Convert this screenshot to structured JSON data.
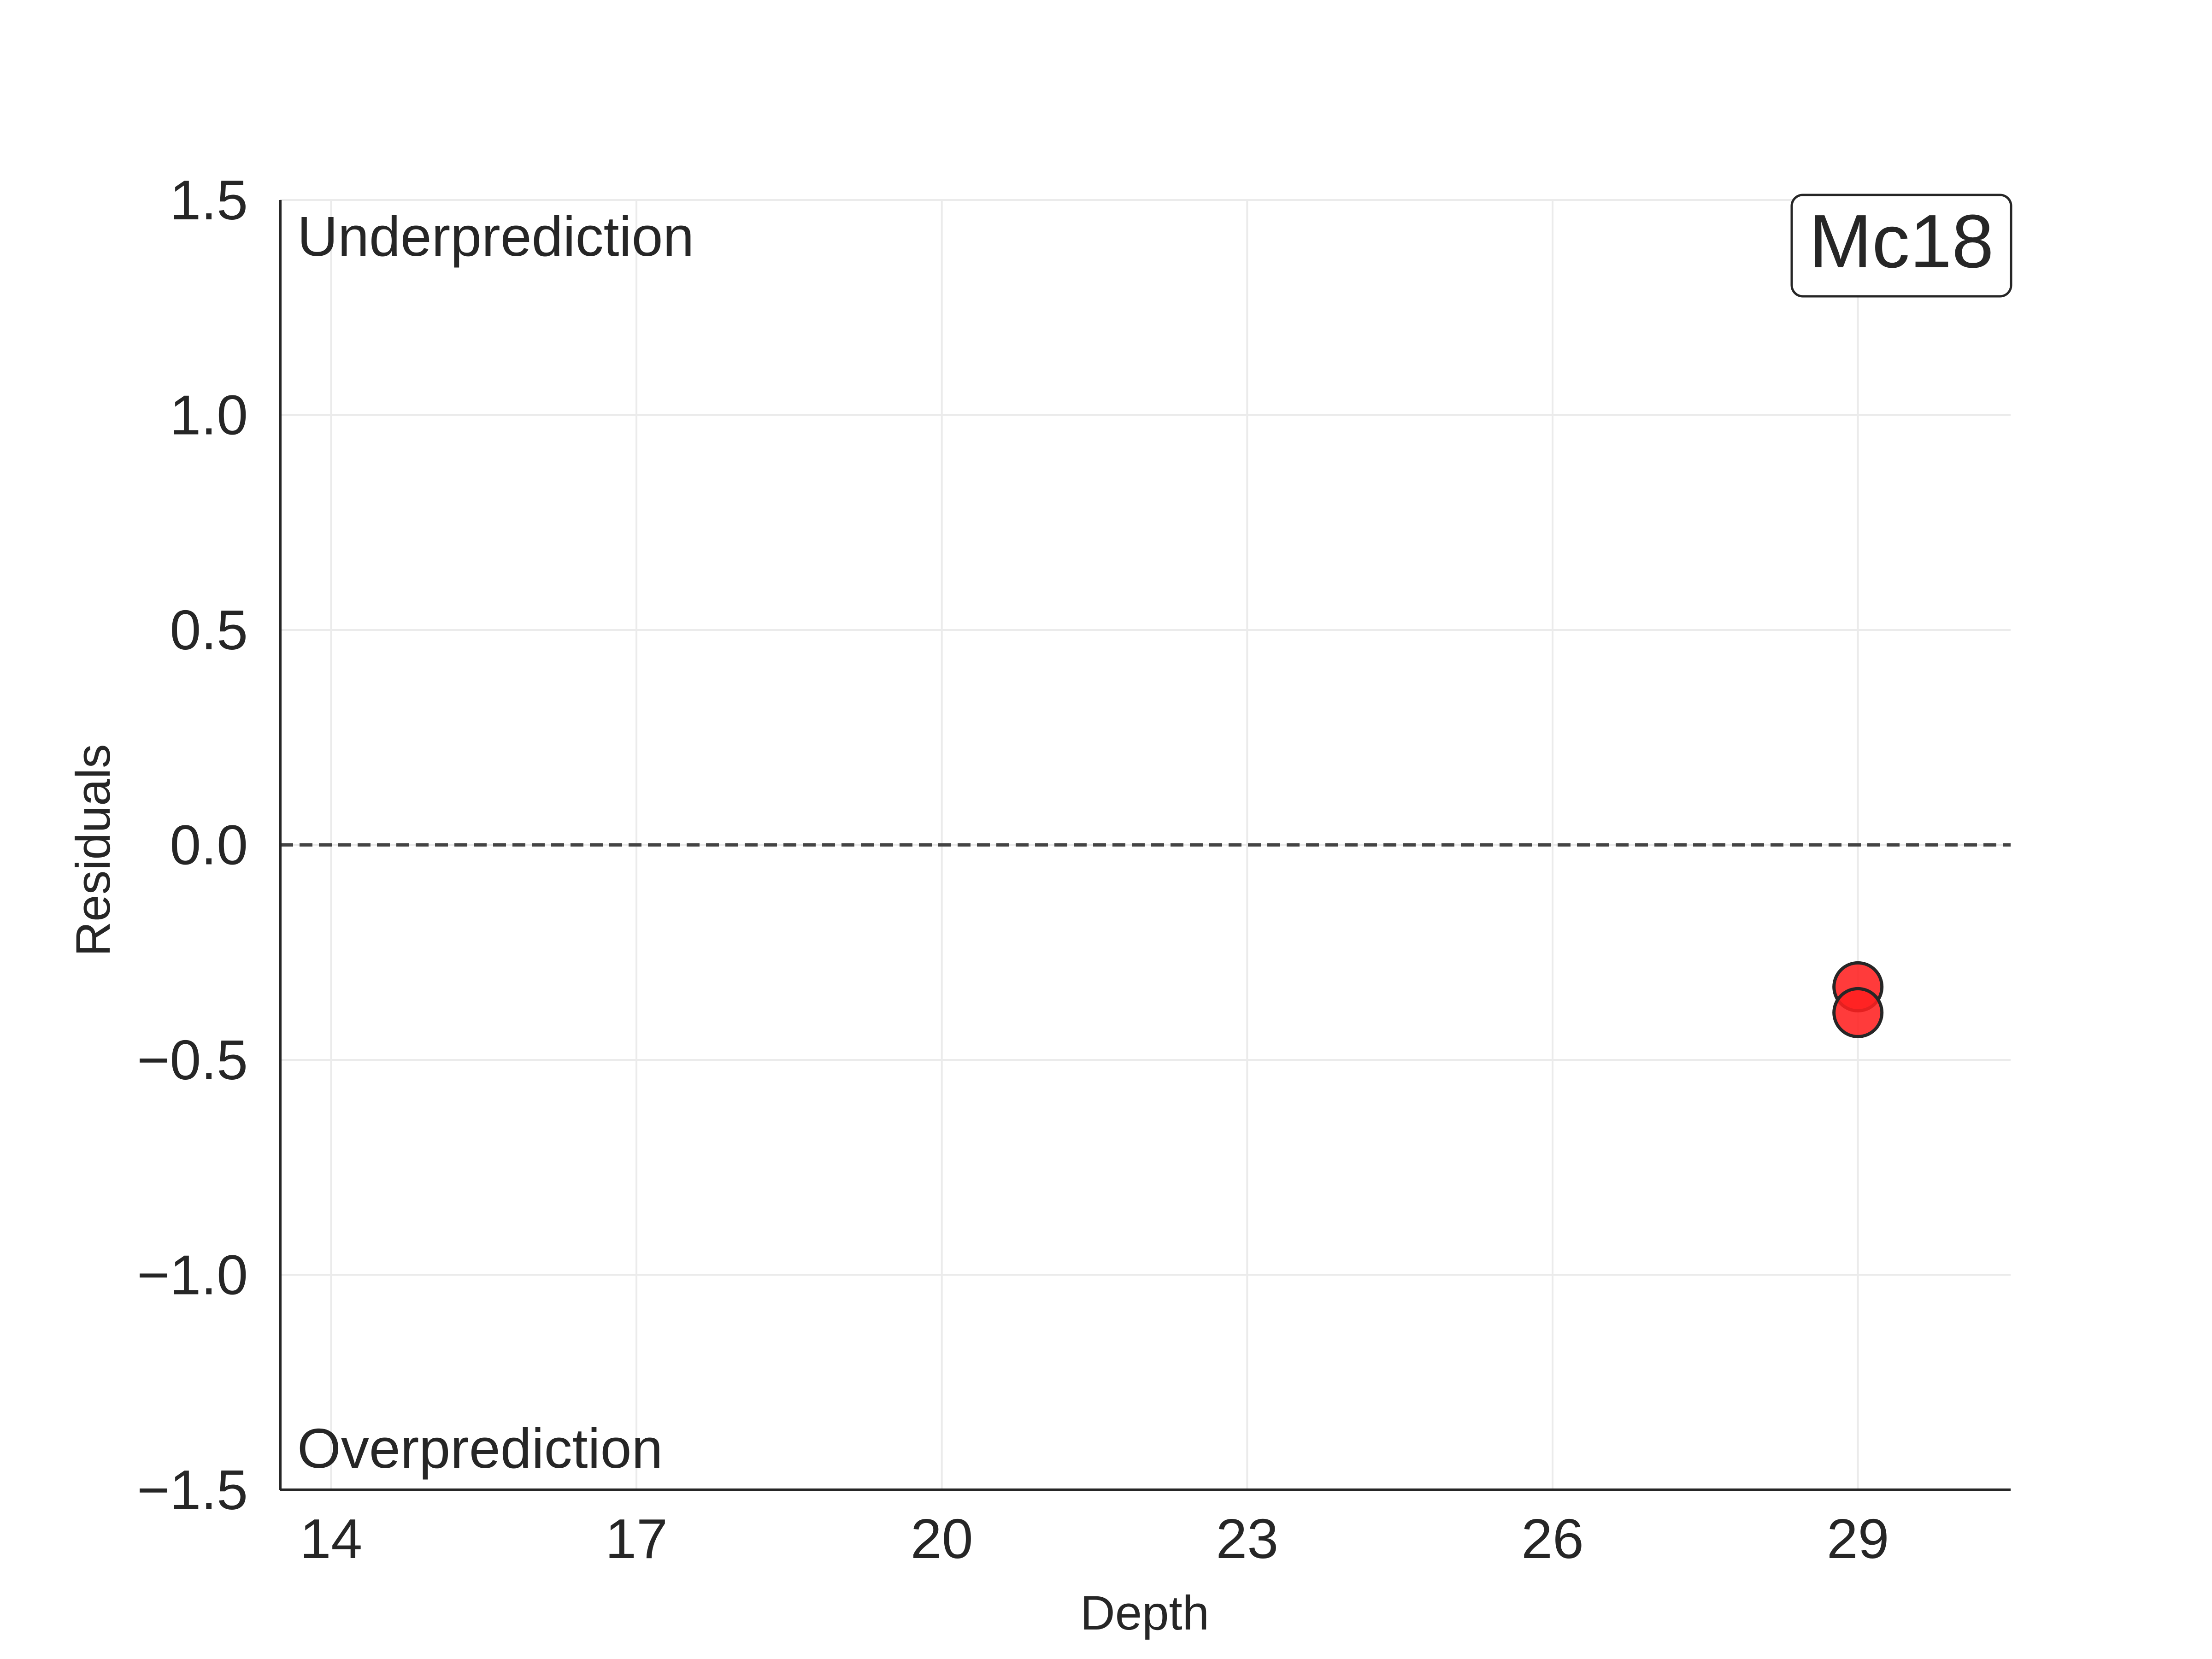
{
  "chart_data": {
    "type": "scatter",
    "title": "",
    "xlabel": "Depth",
    "ylabel": "Residuals",
    "xlim": [
      13.5,
      30.5
    ],
    "ylim": [
      -1.5,
      1.5
    ],
    "x_ticks": [
      14,
      17,
      20,
      23,
      26,
      29
    ],
    "y_ticks": [
      -1.5,
      -1.0,
      -0.5,
      0.0,
      0.5,
      1.0,
      1.5
    ],
    "x_tick_labels": [
      "14",
      "17",
      "20",
      "23",
      "26",
      "29"
    ],
    "y_tick_labels": [
      "−1.5",
      "−1.0",
      "−0.5",
      "0.0",
      "0.5",
      "1.0",
      "1.5"
    ],
    "grid": true,
    "reference_line": {
      "y": 0.0,
      "style": "dashed",
      "color": "#444444"
    },
    "series": [
      {
        "x": [
          29,
          29
        ],
        "y": [
          -0.33,
          -0.39
        ],
        "color": "#ff2020",
        "edgecolor": "#262626"
      }
    ],
    "annotations": {
      "top_left": "Underprediction",
      "bottom_left": "Overprediction"
    },
    "badge": "Mc18"
  }
}
